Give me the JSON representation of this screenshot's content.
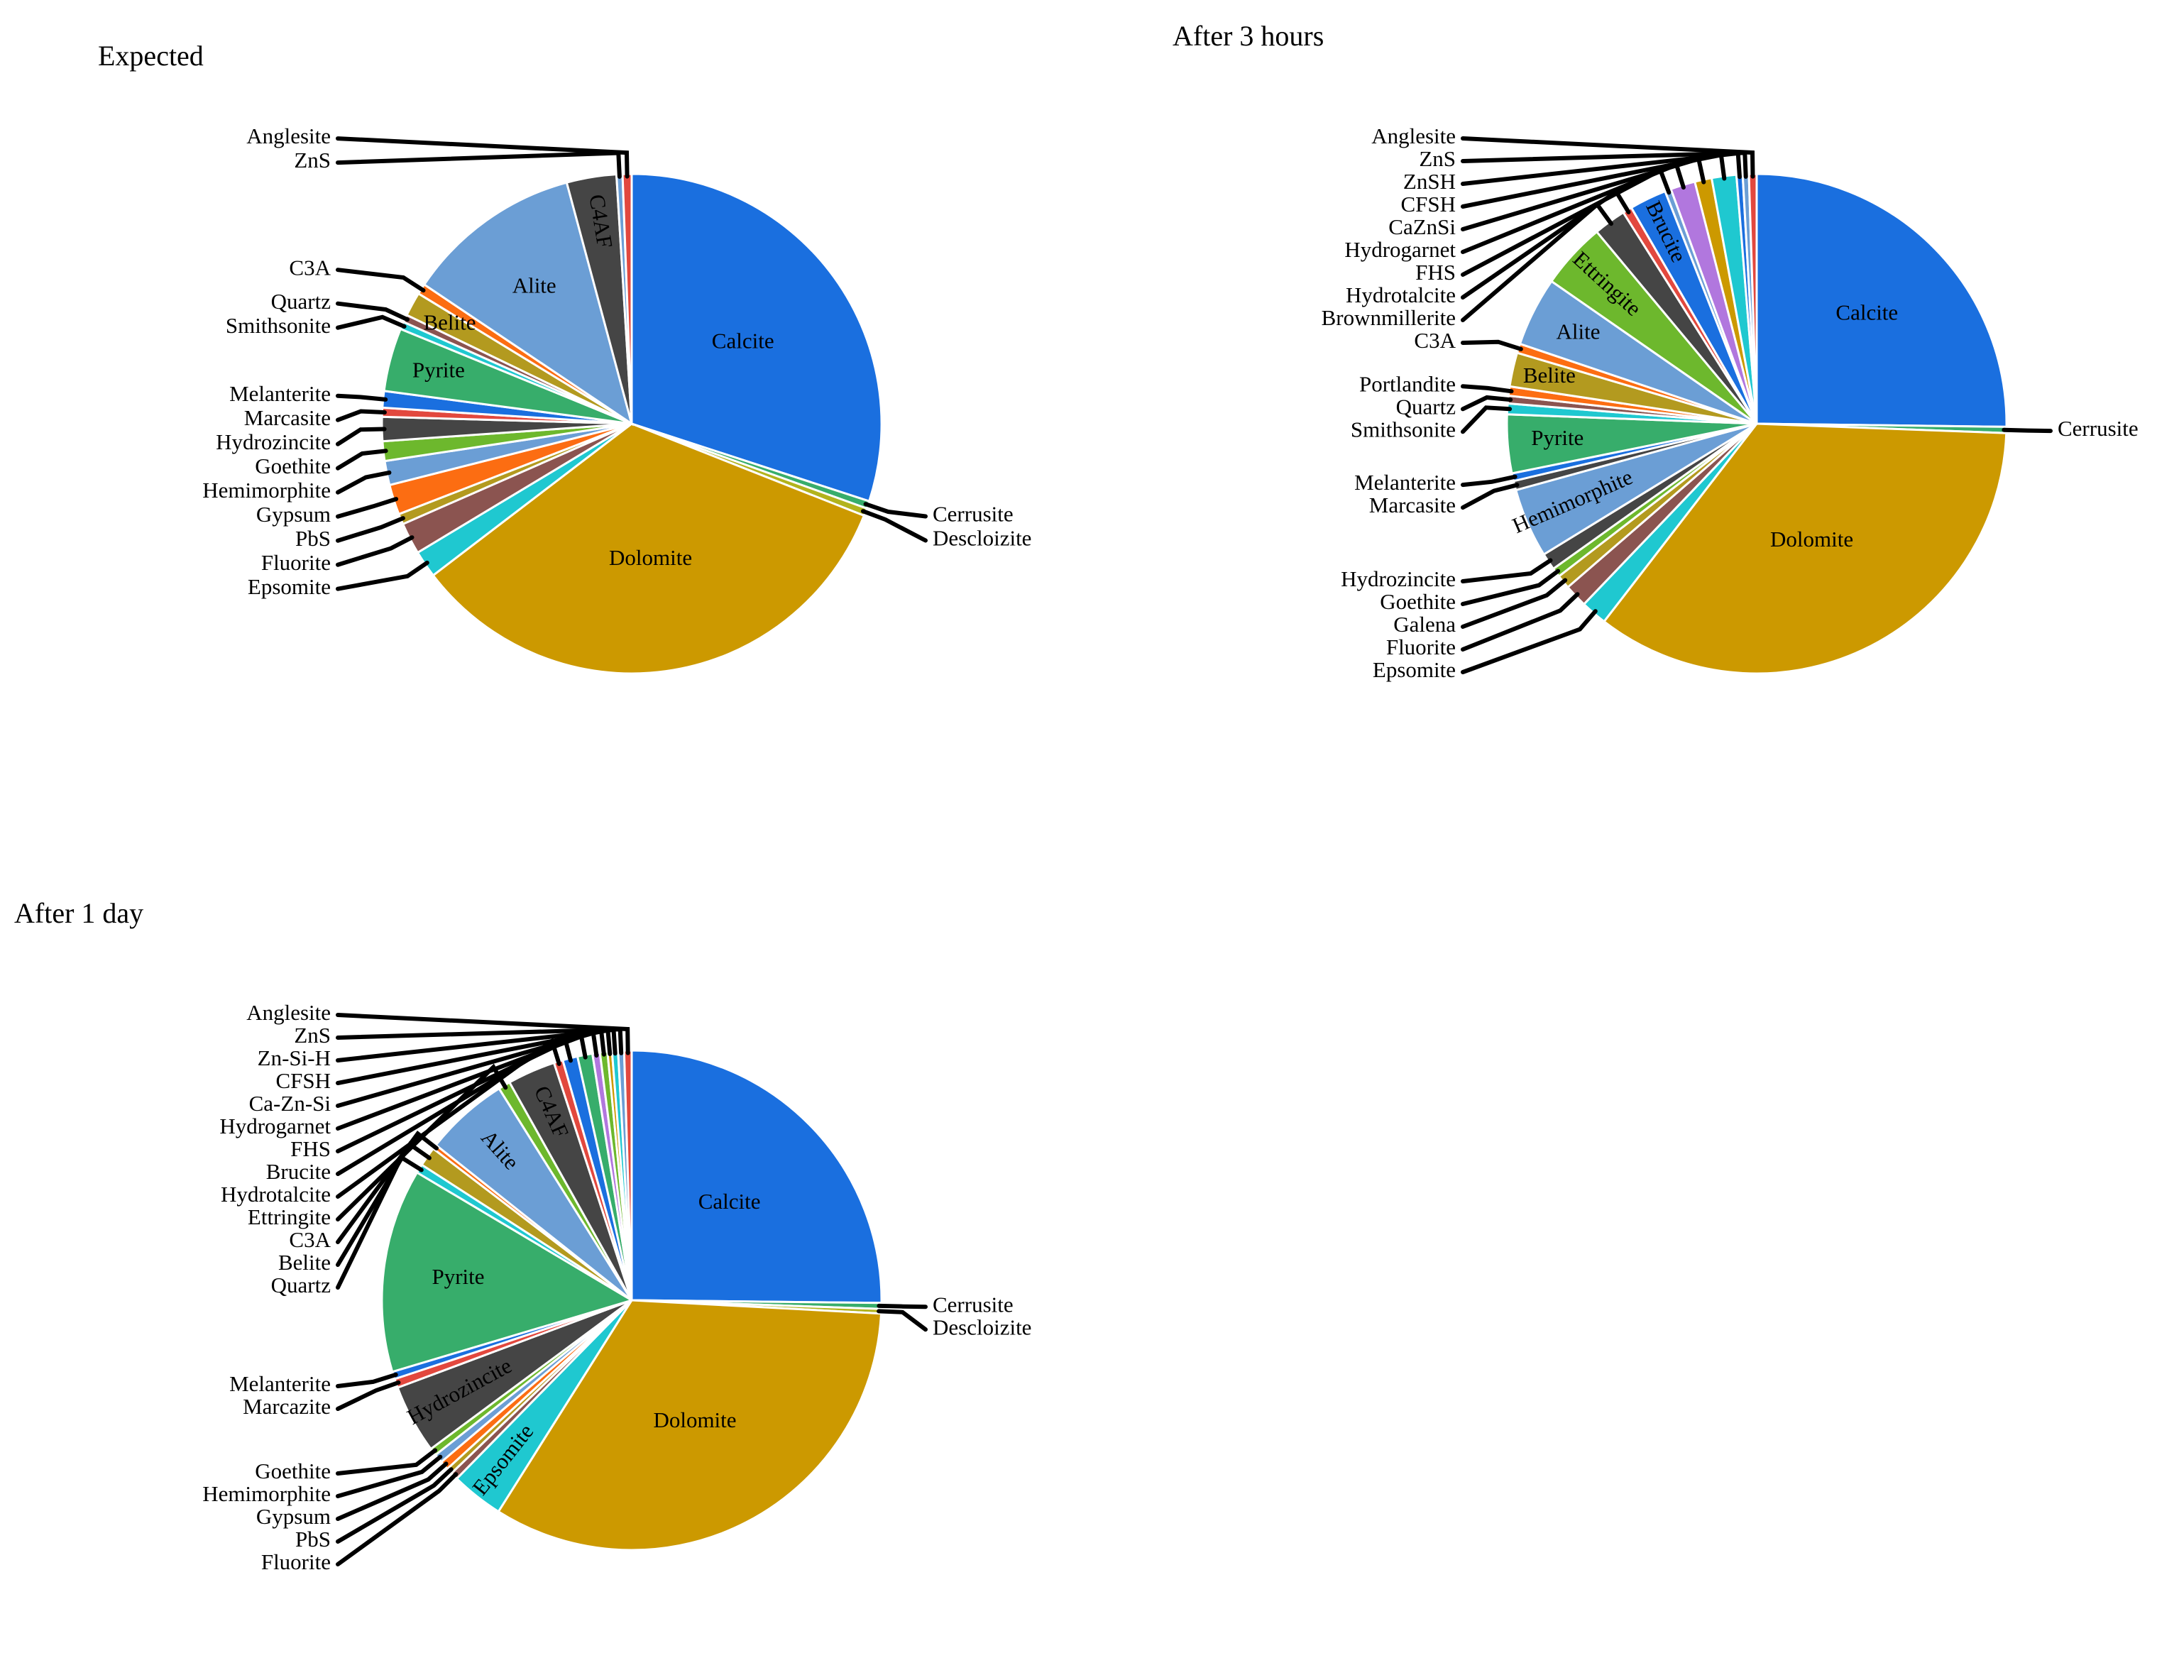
{
  "chart_data": [
    {
      "type": "pie",
      "title": "Expected",
      "labels": [
        "Calcite",
        "Cerrusite",
        "Descloizite",
        "Dolomite",
        "Epsomite",
        "Fluorite",
        "PbS",
        "Gypsum",
        "Hemimorphite",
        "Goethite",
        "Hydrozincite",
        "Marcasite",
        "Melanterite",
        "Pyrite",
        "Smithsonite",
        "Quartz",
        "Belite",
        "C3A",
        "Alite",
        "C4AF",
        "ZnS",
        "Anglesite"
      ],
      "values": [
        30.8,
        0.5,
        0.5,
        34.5,
        1.8,
        2.1,
        0.7,
        2.0,
        1.6,
        1.3,
        1.6,
        0.6,
        1.1,
        4.2,
        0.5,
        0.5,
        1.6,
        0.7,
        11.7,
        3.3,
        0.4,
        0.6
      ],
      "colors": [
        "#1a6fdf",
        "#37ad6b",
        "#b2b31d",
        "#cc9900",
        "#1fc8d0",
        "#8b5450",
        "#b39a1f",
        "#fc6d12",
        "#6b9ed5",
        "#6db82d",
        "#454545",
        "#e2483e",
        "#1a6fdf",
        "#37ad6b",
        "#1fc8d0",
        "#8b5450",
        "#b39a1f",
        "#fc6d12",
        "#6b9ed5",
        "#454545",
        "#6b9ed5",
        "#e2483e"
      ]
    },
    {
      "type": "pie",
      "title": "After 3 hours",
      "labels": [
        "Calcite",
        "Cerrusite",
        "Dolomite",
        "Epsomite",
        "Fluorite",
        "Galena",
        "Goethite",
        "Hydrozincite",
        "Hemimorphite",
        "Marcasite",
        "Melanterite",
        "Pyrite",
        "Smithsonite",
        "Quartz",
        "Portlandite",
        "Belite",
        "C3A",
        "Alite",
        "Ettringite",
        "Brownmillerite",
        "Hydrotalcite",
        "Brucite",
        "FHS",
        "Hydrogarnet",
        "CaZnSi",
        "CFSH",
        "ZnSH",
        "ZnS",
        "Anglesite"
      ],
      "values": [
        25.3,
        0.4,
        35.0,
        1.7,
        1.5,
        0.9,
        0.6,
        1.1,
        4.5,
        0.6,
        0.5,
        3.8,
        0.7,
        0.5,
        0.6,
        2.2,
        0.6,
        4.5,
        4.3,
        2.1,
        0.6,
        2.4,
        0.4,
        1.6,
        1.1,
        1.6,
        0.4,
        0.4,
        0.5
      ],
      "colors": [
        "#1a6fdf",
        "#37ad6b",
        "#cc9900",
        "#1fc8d0",
        "#8b5450",
        "#b39a1f",
        "#6db82d",
        "#454545",
        "#6b9ed5",
        "#454545",
        "#1a6fdf",
        "#37ad6b",
        "#1fc8d0",
        "#8b5450",
        "#fc6d12",
        "#b39a1f",
        "#fc6d12",
        "#6b9ed5",
        "#6db82d",
        "#454545",
        "#e2483e",
        "#1a6fdf",
        "#6b9ed5",
        "#b177de",
        "#cc9900",
        "#1fc8d0",
        "#1a6fdf",
        "#6b9ed5",
        "#e2483e"
      ]
    },
    {
      "type": "pie",
      "title": "After 1 day",
      "labels": [
        "Calcite",
        "Cerrusite",
        "Descloizite",
        "Dolomite",
        "Epsomite",
        "Fluorite",
        "PbS",
        "Gypsum",
        "Hemimorphite",
        "Goethite",
        "Hydrozincite",
        "Marcazite",
        "Melanterite",
        "Pyrite",
        "Quartz",
        "Belite",
        "C3A",
        "Alite",
        "Ettringite",
        "C4AF",
        "Hydrotalcite",
        "Brucite",
        "FHS",
        "Hydrogarnet",
        "Ca-Zn-Si",
        "CFSH",
        "Zn-Si-H",
        "ZnS",
        "Anglesite"
      ],
      "values": [
        26.0,
        0.4,
        0.3,
        34.2,
        3.5,
        0.5,
        0.4,
        0.6,
        0.6,
        0.5,
        4.6,
        0.6,
        0.5,
        13.6,
        0.6,
        1.3,
        0.3,
        5.6,
        0.8,
        3.2,
        0.6,
        1.0,
        1.0,
        0.5,
        0.5,
        0.3,
        0.4,
        0.4,
        0.5
      ],
      "colors": [
        "#1a6fdf",
        "#37ad6b",
        "#b2b31d",
        "#cc9900",
        "#1fc8d0",
        "#8b5450",
        "#b39a1f",
        "#fc6d12",
        "#6b9ed5",
        "#6db82d",
        "#454545",
        "#e2483e",
        "#1a6fdf",
        "#37ad6b",
        "#1fc8d0",
        "#b39a1f",
        "#fc6d12",
        "#6b9ed5",
        "#6db82d",
        "#454545",
        "#e2483e",
        "#1a6fdf",
        "#37ad6b",
        "#b177de",
        "#6db82d",
        "#cc9900",
        "#1fc8d0",
        "#6b9ed5",
        "#e2483e"
      ]
    }
  ]
}
